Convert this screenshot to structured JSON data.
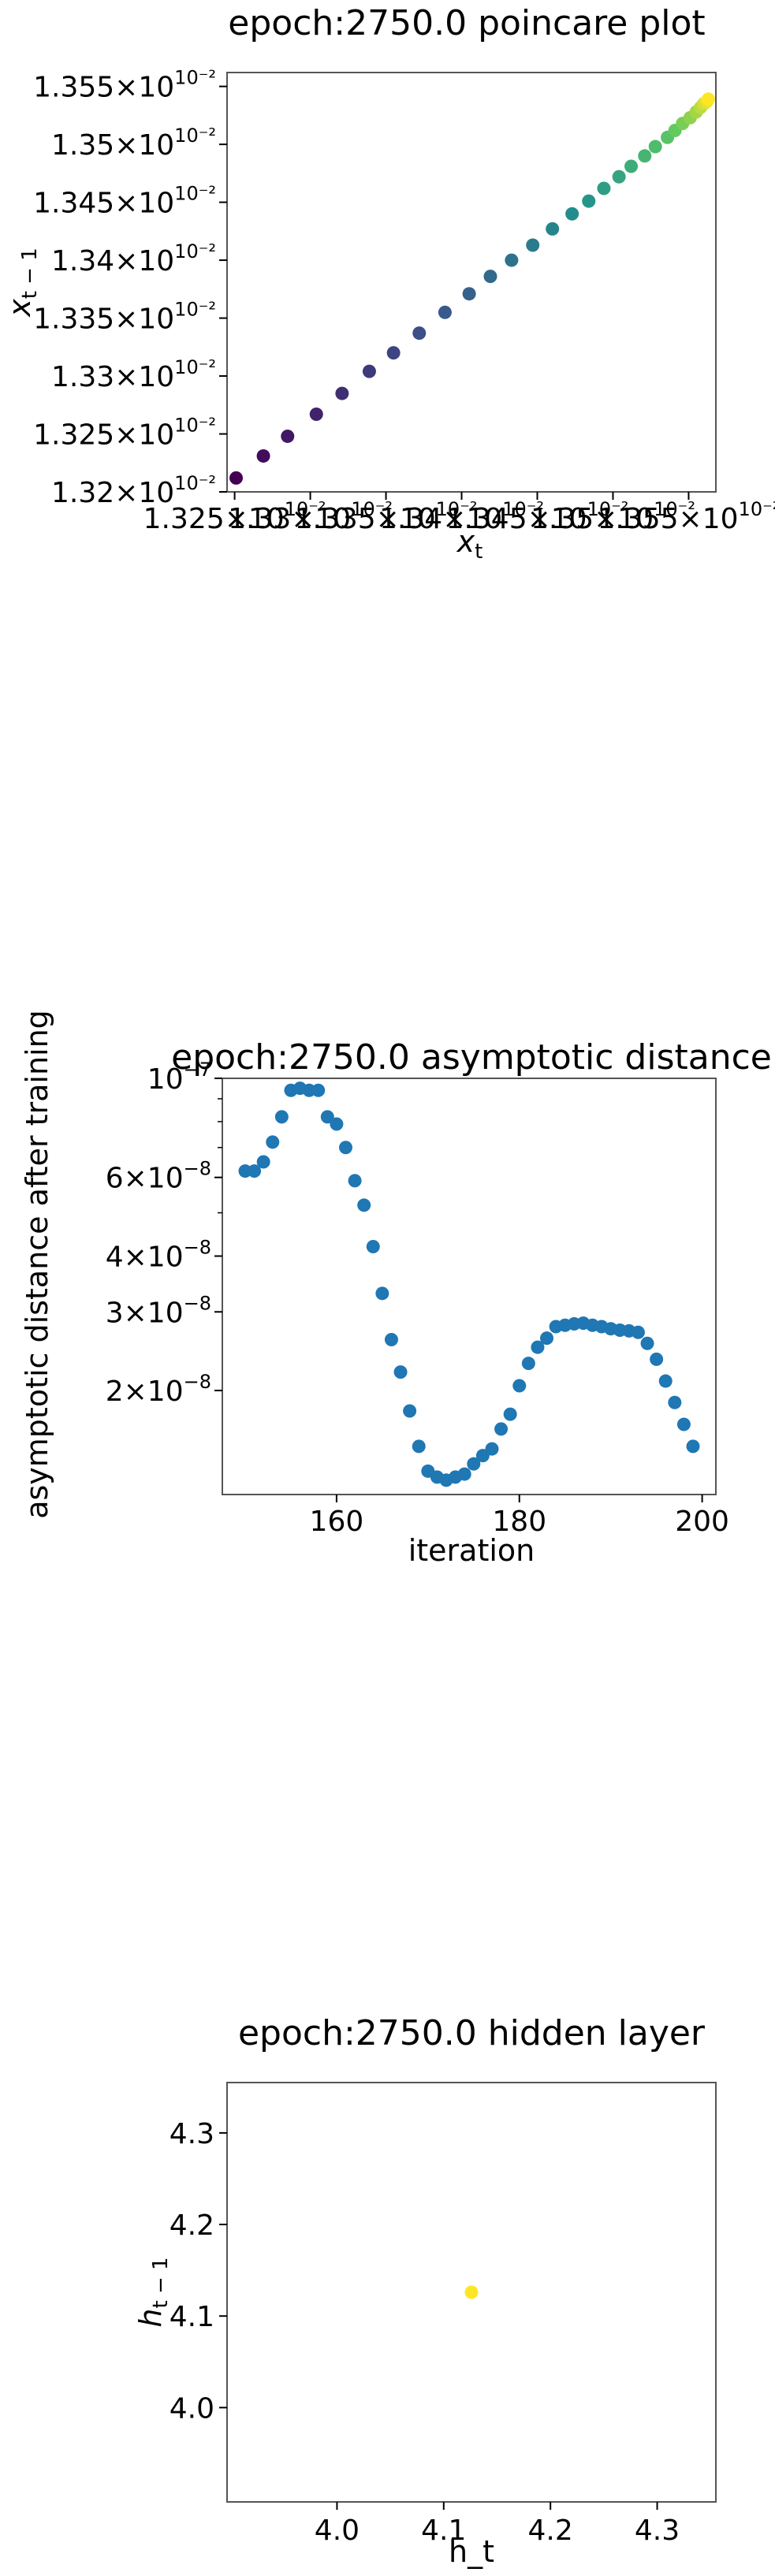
{
  "chart_data": [
    {
      "type": "scatter",
      "title": "epoch:2750.0 poincare plot",
      "xlabel": "x_t",
      "ylabel": "x_{t-1}",
      "colormap": "viridis",
      "xlim": [
        0.013245,
        0.013568
      ],
      "ylim": [
        0.0132,
        0.013562
      ],
      "xtick_values": [
        0.01325,
        0.0133,
        0.01335,
        0.0134,
        0.01345,
        0.0135,
        0.01355
      ],
      "xtick_labels": [
        "1.325",
        "1.33",
        "1.335",
        "1.34",
        "1.345",
        "1.35",
        "1.355"
      ],
      "xtick_exponent": "10⁻²",
      "ytick_values": [
        0.0132,
        0.01325,
        0.0133,
        0.01335,
        0.0134,
        0.01345,
        0.0135,
        0.01355
      ],
      "ytick_labels": [
        "1.32",
        "1.325",
        "1.33",
        "1.335",
        "1.34",
        "1.345",
        "1.35",
        "1.355"
      ],
      "ytick_exponent": "10⁻²",
      "x": [
        0.013251,
        0.013269,
        0.013285,
        0.013304,
        0.013321,
        0.013339,
        0.013355,
        0.013372,
        0.013389,
        0.013405,
        0.013419,
        0.013433,
        0.013447,
        0.01346,
        0.013473,
        0.013484,
        0.013494,
        0.013504,
        0.013512,
        0.013521,
        0.013528,
        0.013536,
        0.013541,
        0.013546,
        0.013551,
        0.013555,
        0.013558,
        0.01356,
        0.013562,
        0.013563
      ],
      "y": [
        0.013212,
        0.013231,
        0.013248,
        0.013267,
        0.013285,
        0.013304,
        0.01332,
        0.013337,
        0.013355,
        0.013371,
        0.013386,
        0.0134,
        0.013413,
        0.013427,
        0.01344,
        0.013451,
        0.013462,
        0.013472,
        0.013481,
        0.01349,
        0.013498,
        0.013506,
        0.013512,
        0.013518,
        0.013523,
        0.013528,
        0.013532,
        0.013535,
        0.013537,
        0.013539
      ]
    },
    {
      "type": "scatter",
      "title": "epoch:2750.0 asymptotic distance",
      "xlabel": "iteration",
      "ylabel": "asymptotic distance after training",
      "yscale": "log",
      "color": "#1f77b4",
      "xlim": [
        147.5,
        201.5
      ],
      "ylim": [
        1.17e-08,
        1e-07
      ],
      "xticks": [
        160,
        180,
        200
      ],
      "ytick_values": [
        2e-08,
        3e-08,
        4e-08,
        6e-08,
        1e-07
      ],
      "ytick_mantissas": [
        "2",
        "3",
        "4",
        "6",
        "10"
      ],
      "ytick_exponents": [
        "−8",
        "−8",
        "−8",
        "−8",
        "−7"
      ],
      "x": [
        150,
        151,
        152,
        153,
        154,
        155,
        156,
        157,
        158,
        159,
        160,
        161,
        162,
        163,
        164,
        165,
        166,
        167,
        168,
        169,
        170,
        171,
        172,
        173,
        174,
        175,
        176,
        177,
        178,
        179,
        180,
        181,
        182,
        183,
        184,
        185,
        186,
        187,
        188,
        189,
        190,
        191,
        192,
        193,
        194,
        195,
        196,
        197,
        198,
        199
      ],
      "y": [
        6.2e-08,
        6.2e-08,
        6.5e-08,
        7.2e-08,
        8.2e-08,
        9.4e-08,
        9.5e-08,
        9.4e-08,
        9.4e-08,
        8.2e-08,
        7.9e-08,
        7e-08,
        5.9e-08,
        5.2e-08,
        4.2e-08,
        3.3e-08,
        2.6e-08,
        2.2e-08,
        1.8e-08,
        1.5e-08,
        1.32e-08,
        1.28e-08,
        1.26e-08,
        1.28e-08,
        1.3e-08,
        1.37e-08,
        1.43e-08,
        1.48e-08,
        1.64e-08,
        1.77e-08,
        2.05e-08,
        2.3e-08,
        2.5e-08,
        2.62e-08,
        2.78e-08,
        2.8e-08,
        2.82e-08,
        2.83e-08,
        2.8e-08,
        2.78e-08,
        2.75e-08,
        2.73e-08,
        2.72e-08,
        2.7e-08,
        2.55e-08,
        2.35e-08,
        2.1e-08,
        1.88e-08,
        1.68e-08,
        1.5e-08
      ]
    },
    {
      "type": "scatter",
      "title": "epoch:2750.0 hidden layer",
      "xlabel": "h_t",
      "ylabel": "h_{t-1}",
      "color": "#fde725",
      "xlim": [
        3.897,
        4.355
      ],
      "ylim": [
        3.897,
        4.355
      ],
      "xticks": [
        4.0,
        4.1,
        4.2,
        4.3
      ],
      "yticks": [
        4.0,
        4.1,
        4.2,
        4.3
      ],
      "x": [
        4.126
      ],
      "y": [
        4.126
      ]
    }
  ]
}
